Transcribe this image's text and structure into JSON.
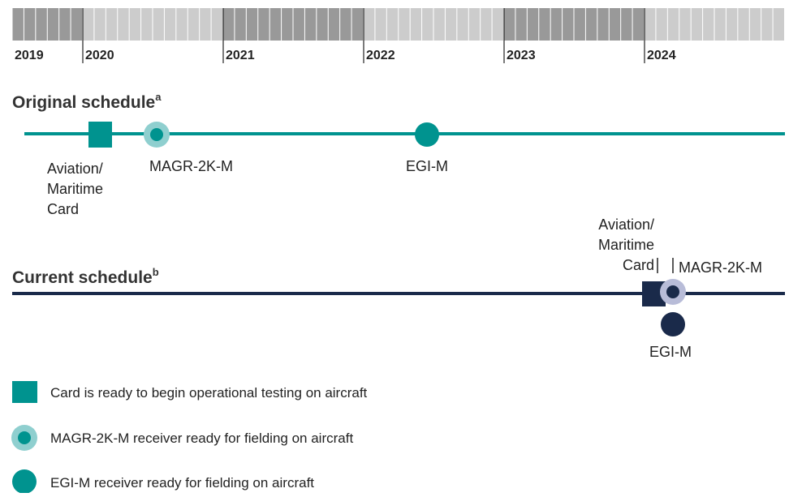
{
  "timeline": {
    "years": [
      "2019",
      "2020",
      "2021",
      "2022",
      "2023",
      "2024"
    ]
  },
  "original": {
    "title": "Original schedule",
    "note": "a",
    "card": [
      "Aviation/",
      "Maritime",
      "Card"
    ],
    "magr": "MAGR-2K-M",
    "egi": "EGI-M"
  },
  "current": {
    "title": "Current schedule",
    "note": "b",
    "card": [
      "Aviation/",
      "Maritime",
      "Card"
    ],
    "magr": "MAGR-2K-M",
    "egi": "EGI-M"
  },
  "legend": [
    "Card is ready to begin operational testing on aircraft",
    "MAGR-2K-M receiver ready for fielding on aircraft",
    "EGI-M receiver ready for fielding on aircraft"
  ]
}
